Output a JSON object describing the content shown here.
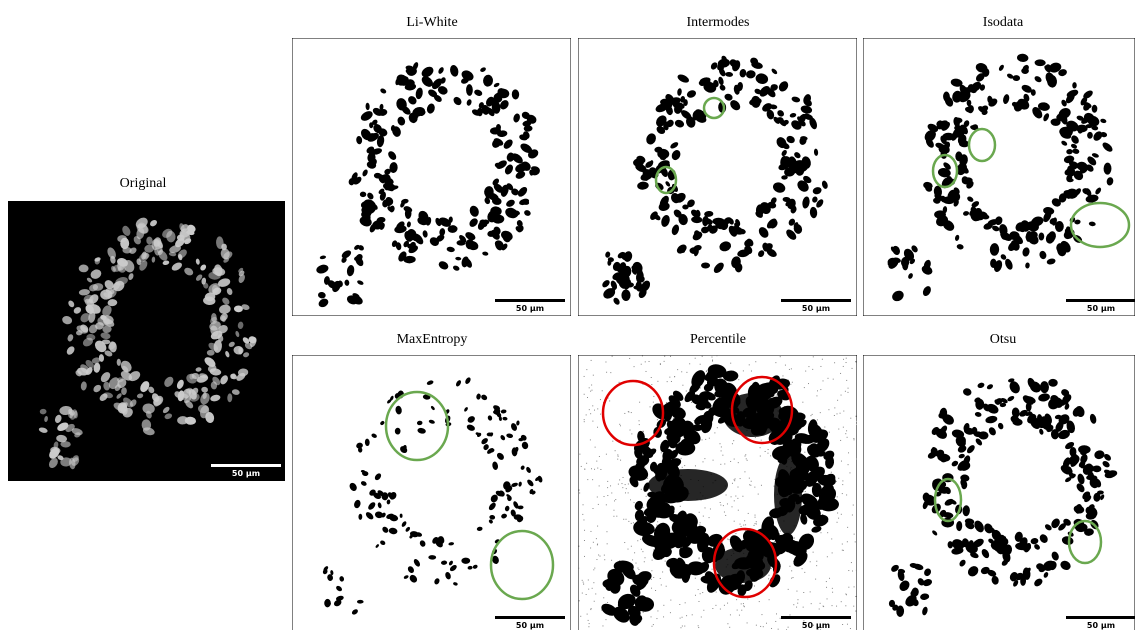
{
  "original": {
    "title": "Original",
    "scale_label": "50 µm"
  },
  "panels": [
    {
      "title": "Li-White",
      "scale_label": "50 µm"
    },
    {
      "title": "Intermodes",
      "scale_label": "50 µm"
    },
    {
      "title": "Isodata",
      "scale_label": "50 µm"
    },
    {
      "title": "MaxEntropy",
      "scale_label": "50 µm"
    },
    {
      "title": "Percentile",
      "scale_label": "50 µm"
    },
    {
      "title": "Otsu",
      "scale_label": "50 µm"
    }
  ]
}
